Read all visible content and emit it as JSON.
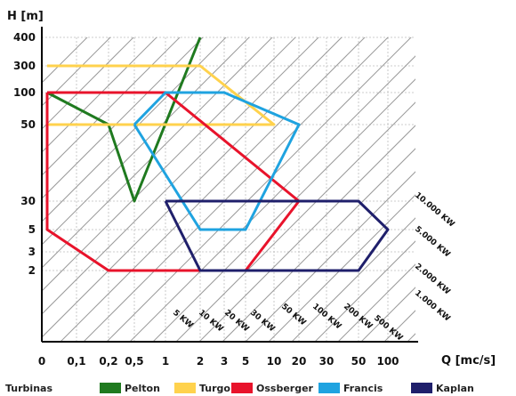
{
  "chart_data": {
    "type": "line",
    "ylabel": "H [m]",
    "xlabel": "Q [mc/s]",
    "x_ticks": [
      "0",
      "0,1",
      "0,2",
      "0,5",
      "1",
      "2",
      "3",
      "5",
      "10",
      "20",
      "30",
      "50",
      "100"
    ],
    "y_ticks": [
      "400",
      "300",
      "100",
      "50",
      "30",
      "5",
      "3",
      "2"
    ],
    "power_lines": [
      "5 KW",
      "10 KW",
      "20 KW",
      "30 KW",
      "50 KW",
      "100 KW",
      "200 KW",
      "500 KW",
      "1.000 KW",
      "2.000 KW",
      "5.000 KW",
      "10.000 KW"
    ],
    "legend_title": "Turbinas",
    "series": [
      {
        "name": "Pelton",
        "color": "#1f7a1f",
        "points": [
          [
            "0",
            "100"
          ],
          [
            "0,2",
            "50"
          ],
          [
            "0,5",
            "30"
          ],
          [
            "2",
            "400"
          ]
        ]
      },
      {
        "name": "Turgo",
        "color": "#ffd24d",
        "points": [
          [
            "0",
            "300"
          ],
          [
            "2",
            "300"
          ],
          [
            "10",
            "50"
          ],
          [
            "0",
            "50"
          ]
        ]
      },
      {
        "name": "Ossberger",
        "color": "#e8132b",
        "points": [
          [
            "0",
            "100"
          ],
          [
            "1",
            "100"
          ],
          [
            "20",
            "30"
          ],
          [
            "5",
            "2"
          ],
          [
            "0,2",
            "2"
          ],
          [
            "0",
            "5"
          ],
          [
            "0",
            "100"
          ]
        ]
      },
      {
        "name": "Francis",
        "color": "#1fa3e0",
        "points": [
          [
            "0,5",
            "50"
          ],
          [
            "1",
            "100"
          ],
          [
            "3",
            "100"
          ],
          [
            "20",
            "50"
          ],
          [
            "5",
            "5"
          ],
          [
            "2",
            "5"
          ],
          [
            "0,5",
            "50"
          ]
        ]
      },
      {
        "name": "Kaplan",
        "color": "#1f1f6b",
        "points": [
          [
            "1",
            "30"
          ],
          [
            "50",
            "30"
          ],
          [
            "100",
            "5"
          ],
          [
            "50",
            "2"
          ],
          [
            "2",
            "2"
          ],
          [
            "1",
            "30"
          ]
        ]
      }
    ]
  }
}
